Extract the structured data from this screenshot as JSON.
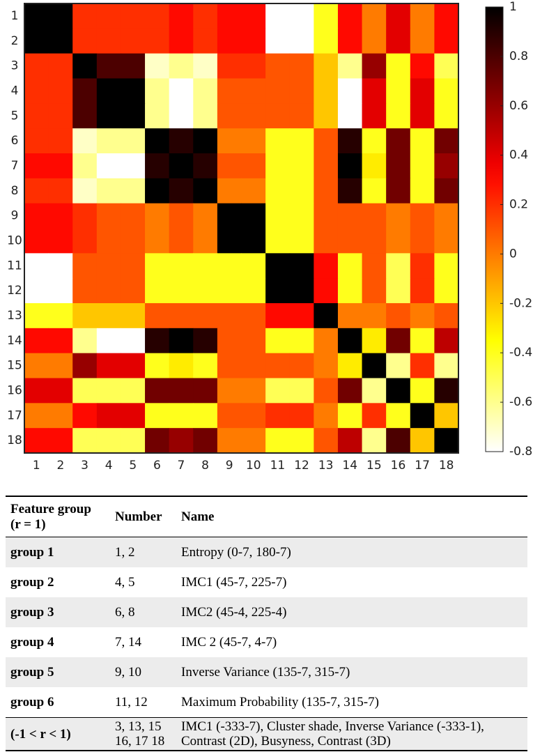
{
  "chart_data": {
    "type": "heatmap",
    "x": [
      "1",
      "2",
      "3",
      "4",
      "5",
      "6",
      "7",
      "8",
      "9",
      "10",
      "11",
      "12",
      "13",
      "14",
      "15",
      "16",
      "17",
      "18"
    ],
    "y": [
      "1",
      "2",
      "3",
      "4",
      "5",
      "6",
      "7",
      "8",
      "9",
      "10",
      "11",
      "12",
      "13",
      "14",
      "15",
      "16",
      "17",
      "18"
    ],
    "values": [
      [
        1,
        1,
        0.2,
        0.2,
        0.2,
        0.2,
        0.3,
        0.2,
        0.3,
        0.3,
        -0.8,
        -0.8,
        -0.4,
        0.3,
        0,
        0.4,
        0,
        0.3
      ],
      [
        1,
        1,
        0.2,
        0.2,
        0.2,
        0.2,
        0.3,
        0.2,
        0.3,
        0.3,
        -0.8,
        -0.8,
        -0.4,
        0.3,
        0,
        0.4,
        0,
        0.3
      ],
      [
        0.2,
        0.2,
        1,
        0.8,
        0.8,
        -0.7,
        -0.6,
        -0.7,
        0.2,
        0.2,
        0.1,
        0.1,
        -0.2,
        -0.6,
        0.6,
        -0.4,
        0.3,
        -0.5
      ],
      [
        0.2,
        0.2,
        0.8,
        1,
        1,
        -0.6,
        -0.8,
        -0.6,
        0.1,
        0.1,
        0.1,
        0.1,
        -0.2,
        -0.8,
        0.4,
        -0.4,
        0.4,
        -0.4
      ],
      [
        0.2,
        0.2,
        0.8,
        1,
        1,
        -0.6,
        -0.8,
        -0.6,
        0.1,
        0.1,
        0.1,
        0.1,
        -0.2,
        -0.8,
        0.4,
        -0.4,
        0.4,
        -0.4
      ],
      [
        0.2,
        0.2,
        -0.7,
        -0.6,
        -0.6,
        1,
        0.9,
        1,
        0,
        0,
        -0.4,
        -0.4,
        0.1,
        0.9,
        -0.4,
        0.7,
        -0.4,
        0.7
      ],
      [
        0.3,
        0.3,
        -0.6,
        -0.8,
        -0.8,
        0.9,
        1,
        0.9,
        0.1,
        0.1,
        -0.4,
        -0.4,
        0.1,
        1,
        -0.3,
        0.7,
        -0.4,
        0.6
      ],
      [
        0.2,
        0.2,
        -0.7,
        -0.6,
        -0.6,
        1,
        0.9,
        1,
        0,
        0,
        -0.4,
        -0.4,
        0.1,
        0.9,
        -0.4,
        0.7,
        -0.4,
        0.7
      ],
      [
        0.3,
        0.3,
        0.2,
        0.1,
        0.1,
        0,
        0.1,
        0,
        1,
        1,
        -0.4,
        -0.4,
        0.1,
        0.1,
        0.1,
        0,
        0.1,
        0
      ],
      [
        0.3,
        0.3,
        0.2,
        0.1,
        0.1,
        0,
        0.1,
        0,
        1,
        1,
        -0.4,
        -0.4,
        0.1,
        0.1,
        0.1,
        0,
        0.1,
        0
      ],
      [
        -0.8,
        -0.8,
        0.1,
        0.1,
        0.1,
        -0.4,
        -0.4,
        -0.4,
        -0.4,
        -0.4,
        1,
        1,
        0.3,
        -0.4,
        0.1,
        -0.5,
        0.2,
        -0.4
      ],
      [
        -0.8,
        -0.8,
        0.1,
        0.1,
        0.1,
        -0.4,
        -0.4,
        -0.4,
        -0.4,
        -0.4,
        1,
        1,
        0.3,
        -0.4,
        0.1,
        -0.5,
        0.2,
        -0.4
      ],
      [
        -0.4,
        -0.4,
        -0.2,
        -0.2,
        -0.2,
        0.1,
        0.1,
        0.1,
        0.1,
        0.1,
        0.3,
        0.3,
        1,
        0,
        0,
        0.1,
        0,
        0.1
      ],
      [
        0.3,
        0.3,
        -0.6,
        -0.8,
        -0.8,
        0.9,
        1,
        0.9,
        0.1,
        0.1,
        -0.4,
        -0.4,
        0,
        1,
        -0.3,
        0.7,
        -0.4,
        0.5
      ],
      [
        0,
        0,
        0.6,
        0.4,
        0.4,
        -0.4,
        -0.3,
        -0.4,
        0.1,
        0.1,
        0.1,
        0.1,
        0,
        -0.3,
        1,
        -0.6,
        0.2,
        -0.6
      ],
      [
        0.4,
        0.4,
        -0.5,
        -0.5,
        -0.5,
        0.7,
        0.7,
        0.7,
        0,
        0,
        -0.5,
        -0.5,
        0.1,
        0.7,
        -0.6,
        1,
        -0.4,
        0.9
      ],
      [
        0,
        0,
        0.3,
        0.4,
        0.4,
        -0.4,
        -0.4,
        -0.4,
        0.1,
        0.1,
        0.2,
        0.2,
        0,
        -0.4,
        0.2,
        -0.4,
        1,
        -0.2
      ],
      [
        0.3,
        0.3,
        -0.5,
        -0.5,
        -0.5,
        0.7,
        0.6,
        0.7,
        0,
        0,
        -0.4,
        -0.4,
        0.1,
        0.5,
        -0.6,
        0.8,
        -0.2,
        1
      ]
    ],
    "colormap": "hot-reversed",
    "zlim": [
      -0.8,
      1
    ],
    "zticks": [
      1,
      0.8,
      0.6,
      0.4,
      0.2,
      0,
      -0.2,
      -0.4,
      -0.6,
      -0.8
    ]
  },
  "table": {
    "header": [
      "Feature group (r = 1)",
      "Number",
      "Name"
    ],
    "rows": [
      [
        "group 1",
        "1, 2",
        "Entropy (0-7, 180-7)"
      ],
      [
        "group 2",
        "4, 5",
        "IMC1 (45-7, 225-7)"
      ],
      [
        "group 3",
        "6, 8",
        "IMC2 (45-4, 225-4)"
      ],
      [
        "group 4",
        "7, 14",
        "IMC 2 (45-7, 4-7)"
      ],
      [
        "group 5",
        "9, 10",
        "Inverse Variance (135-7, 315-7)"
      ],
      [
        "group 6",
        "11, 12",
        "Maximum Probability (135-7, 315-7)"
      ],
      [
        "(-1 < r < 1)",
        "3, 13, 15 16, 17 18",
        "IMC1 (-333-7), Cluster shade, Inverse Variance (-333-1), Contrast (2D), Busyness, Contrast (3D)"
      ]
    ]
  }
}
